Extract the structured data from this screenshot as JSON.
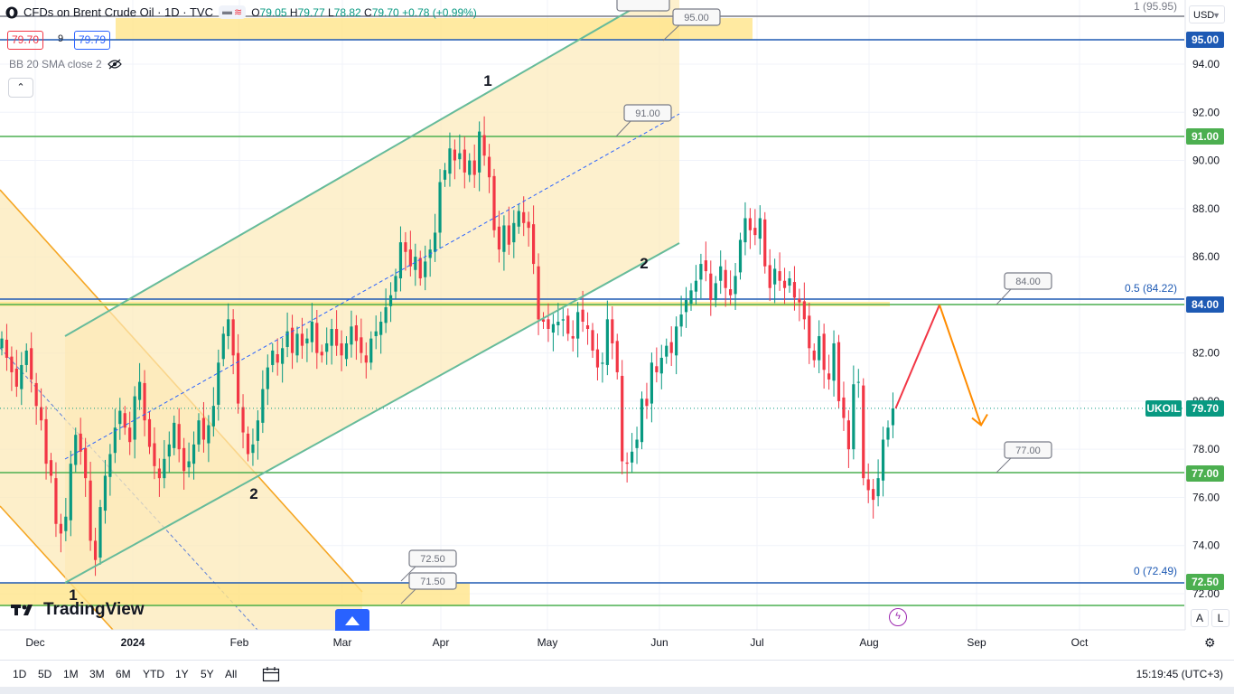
{
  "header": {
    "title": "CFDs on Brent Crude Oil · 1D · TVC",
    "ohlc": {
      "o_label": "O",
      "o": "79.05",
      "h_label": "H",
      "h": "79.77",
      "l_label": "L",
      "l": "78.82",
      "c_label": "C",
      "c": "79.70",
      "change": "+0.78 (+0.99%)"
    },
    "bid": "79.70",
    "spread": "9",
    "ask": "79.79",
    "indicator": "BB 20 SMA close 2",
    "currency": "USD",
    "pill_icons": [
      "minus-icon",
      "wave-icon"
    ]
  },
  "colors": {
    "up": "#089981",
    "down": "#f23645",
    "green_line": "#4caf50",
    "blue_line": "#1e5ab4",
    "channel_fill": "#fce9b8",
    "zone_fill": "#ffe58a",
    "orange": "#f5a623",
    "teal": "#66bb9a"
  },
  "chart_data": {
    "type": "candlestick",
    "symbol": "UKOIL",
    "last_price": 79.7,
    "y_ticks": [
      72.0,
      74.0,
      76.0,
      78.0,
      80.0,
      82.0,
      84.0,
      86.0,
      88.0,
      90.0,
      92.0,
      94.0
    ],
    "x_ticks": [
      "Dec",
      "2024",
      "Feb",
      "Mar",
      "Apr",
      "May",
      "Jun",
      "Jul",
      "Aug",
      "Sep",
      "Oct"
    ],
    "price_labels": [
      {
        "text": "95.00",
        "color": "#1e5ab4"
      },
      {
        "text": "91.00",
        "color": "#4caf50"
      },
      {
        "text": "84.00",
        "color": "#1e5ab4"
      },
      {
        "text": "UKOIL",
        "color": "#089981"
      },
      {
        "text": "79.70",
        "color": "#089981"
      },
      {
        "text": "77.00",
        "color": "#4caf50"
      },
      {
        "text": "72.50",
        "color": "#4caf50"
      }
    ],
    "level_callouts": [
      "95.00",
      "91.00",
      "84.00",
      "77.00",
      "72.50",
      "71.50"
    ],
    "fib_labels": [
      "1 (95.95)",
      "0.5 (84.22)",
      "0 (72.49)"
    ],
    "wave_labels": [
      "1",
      "2",
      "2",
      "1"
    ],
    "closes": [
      82.6,
      81.8,
      81.2,
      80.6,
      81.5,
      82.1,
      80.9,
      79.8,
      79.2,
      77.4,
      76.9,
      74.9,
      74.5,
      75.2,
      77.4,
      78.6,
      77.9,
      76.8,
      74.2,
      73.4,
      75.6,
      76.9,
      77.8,
      78.9,
      79.6,
      78.9,
      78.3,
      80.2,
      80.8,
      79.2,
      78.1,
      77.3,
      76.8,
      77.6,
      78.2,
      79.1,
      78.0,
      77.1,
      77.5,
      78.2,
      79.2,
      78.4,
      79.0,
      79.8,
      81.6,
      82.8,
      83.4,
      81.9,
      79.9,
      78.7,
      77.8,
      78.2,
      79.2,
      80.5,
      81.4,
      82.1,
      81.6,
      82.2,
      82.9,
      82.0,
      82.8,
      82.3,
      82.6,
      83.3,
      82.0,
      81.9,
      82.4,
      83.0,
      82.3,
      81.9,
      82.4,
      83.1,
      82.5,
      82.0,
      81.6,
      82.6,
      82.9,
      83.3,
      83.9,
      84.4,
      85.2,
      86.6,
      86.2,
      85.6,
      86.0,
      85.1,
      85.8,
      86.3,
      87.0,
      89.1,
      89.6,
      90.5,
      90.0,
      90.3,
      89.5,
      90.0,
      89.4,
      91.2,
      90.2,
      89.3,
      87.1,
      86.3,
      87.3,
      86.5,
      87.4,
      87.9,
      87.4,
      87.2,
      85.7,
      83.4,
      83.3,
      83.0,
      83.2,
      83.3,
      83.4,
      82.8,
      82.6,
      83.7,
      83.3,
      83.0,
      82.1,
      81.4,
      81.6,
      83.4,
      82.4,
      81.2,
      77.5,
      77.4,
      77.9,
      78.4,
      80.1,
      79.8,
      81.6,
      81.2,
      81.8,
      82.3,
      82.0,
      83.1,
      83.6,
      84.2,
      84.6,
      85.0,
      85.7,
      85.4,
      84.2,
      84.9,
      85.6,
      84.7,
      84.4,
      85.2,
      86.7,
      87.6,
      87.1,
      86.9,
      87.6,
      85.6,
      84.7,
      85.5,
      85.0,
      84.7,
      85.1,
      84.3,
      84.1,
      83.4,
      82.2,
      81.7,
      82.7,
      81.3,
      80.9,
      82.4,
      80.0,
      79.3,
      78.0,
      80.7,
      80.8,
      76.8,
      76.3,
      75.9,
      76.8,
      78.4,
      78.9,
      79.7
    ]
  },
  "forecast": {
    "peak": 84.0,
    "target": 79.0
  },
  "bottom": {
    "timeframes": [
      "1D",
      "5D",
      "1M",
      "3M",
      "6M",
      "YTD",
      "1Y",
      "5Y",
      "All"
    ],
    "clock": "15:19:45 (UTC+3)",
    "brand": "TradingView",
    "scale_buttons": [
      "A",
      "L"
    ]
  }
}
